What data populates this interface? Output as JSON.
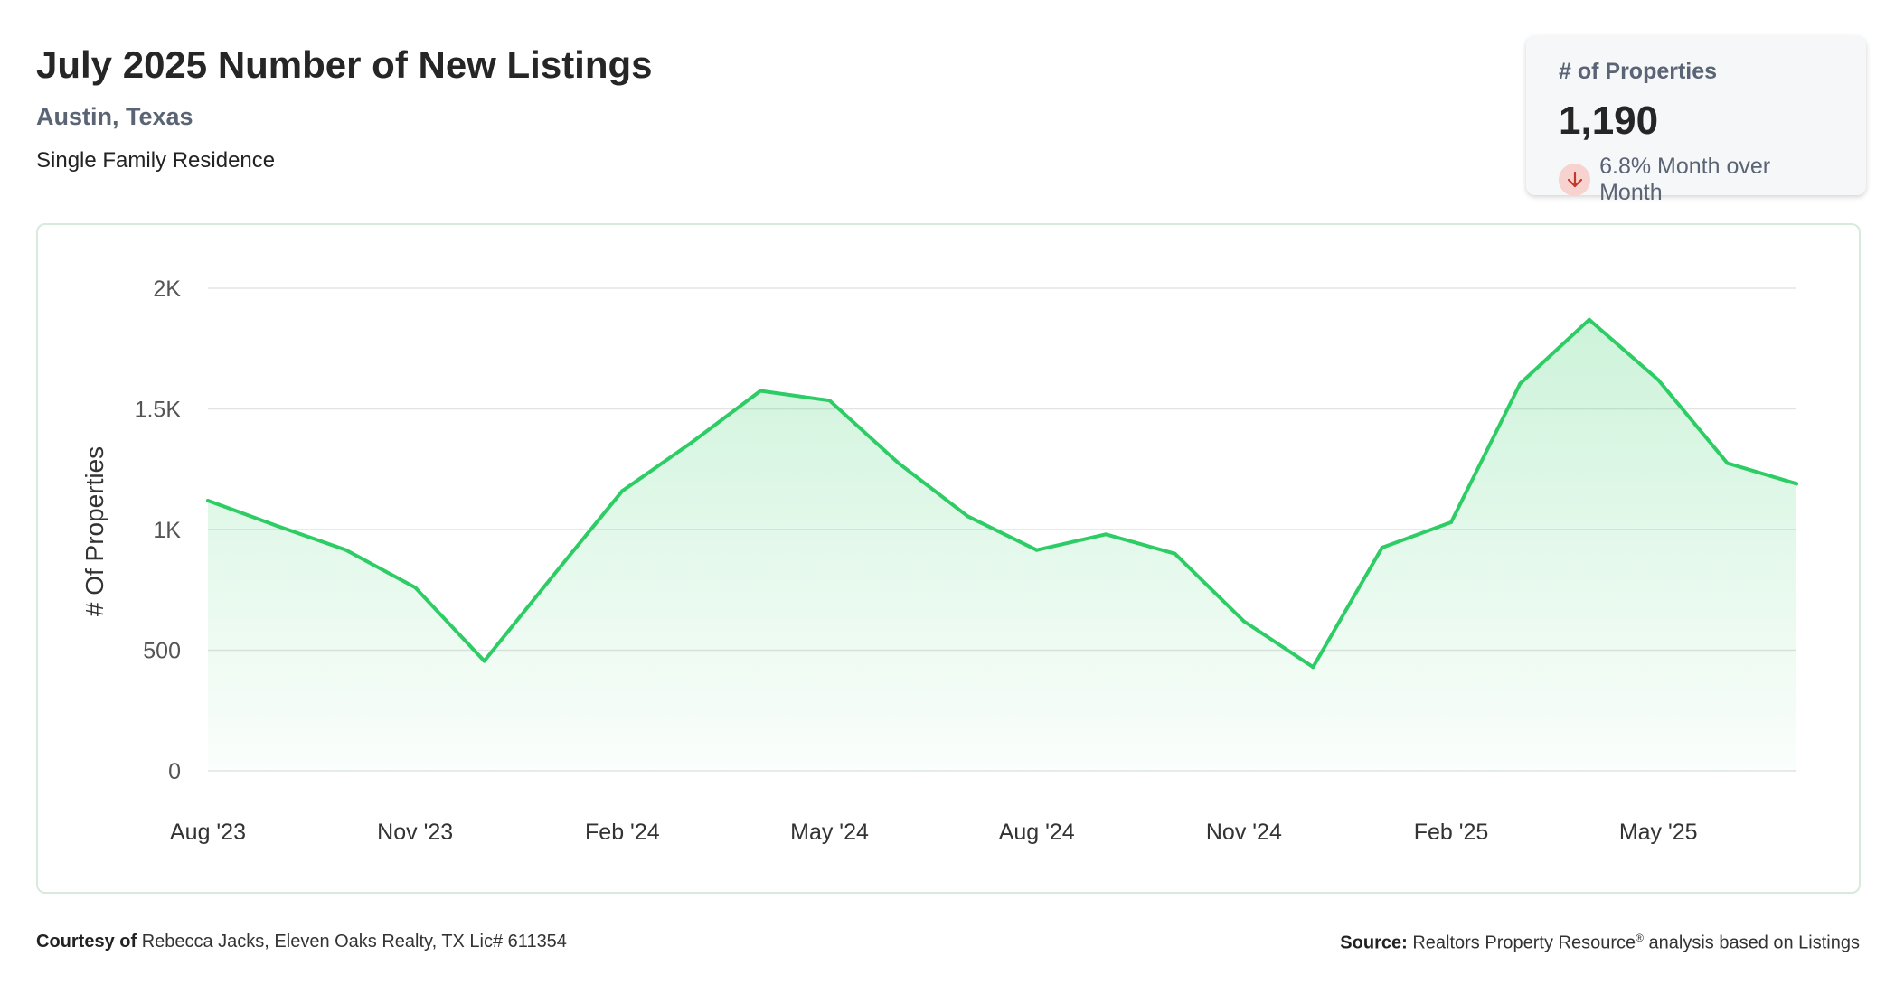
{
  "header": {
    "title": "July 2025 Number of New Listings",
    "location": "Austin, Texas",
    "property_type": "Single Family Residence"
  },
  "stat_card": {
    "label": "# of Properties",
    "value": "1,190",
    "change_text": "6.8% Month over Month",
    "direction_icon": "arrow-down-icon",
    "direction_color": "#c0392b"
  },
  "footer": {
    "courtesy_label": "Courtesy of",
    "courtesy_text": "Rebecca Jacks, Eleven Oaks Realty, TX Lic# 611354",
    "source_label": "Source:",
    "source_text_1": "Realtors Property Resource",
    "source_reg": "®",
    "source_text_2": "analysis based on Listings"
  },
  "colors": {
    "line": "#2ecc65",
    "fill": "#2ecc65",
    "grid": "#e3e3e3",
    "frame_border": "#d7eadc"
  },
  "chart_data": {
    "type": "area",
    "ylabel": "# Of Properties",
    "xlabel": "",
    "ylim": [
      0,
      2000
    ],
    "y_ticks": [
      0,
      500,
      1000,
      1500,
      2000
    ],
    "y_tick_labels": [
      "0",
      "500",
      "1K",
      "1.5K",
      "2K"
    ],
    "x_tick_labels": [
      "Aug '23",
      "Nov '23",
      "Feb '24",
      "May '24",
      "Aug '24",
      "Nov '24",
      "Feb '25",
      "May '25"
    ],
    "grid": true,
    "legend": "none",
    "x": [
      "Aug '23",
      "Sep '23",
      "Oct '23",
      "Nov '23",
      "Dec '23",
      "Jan '24",
      "Feb '24",
      "Mar '24",
      "Apr '24",
      "May '24",
      "Jun '24",
      "Jul '24",
      "Aug '24",
      "Sep '24",
      "Oct '24",
      "Nov '24",
      "Dec '24",
      "Jan '25",
      "Feb '25",
      "Mar '25",
      "Apr '25",
      "May '25",
      "Jun '25",
      "Jul '25"
    ],
    "values": [
      1120,
      1015,
      915,
      760,
      455,
      810,
      1160,
      1360,
      1575,
      1535,
      1275,
      1055,
      915,
      980,
      900,
      620,
      430,
      925,
      1030,
      1605,
      1870,
      1620,
      1275,
      1190
    ]
  }
}
